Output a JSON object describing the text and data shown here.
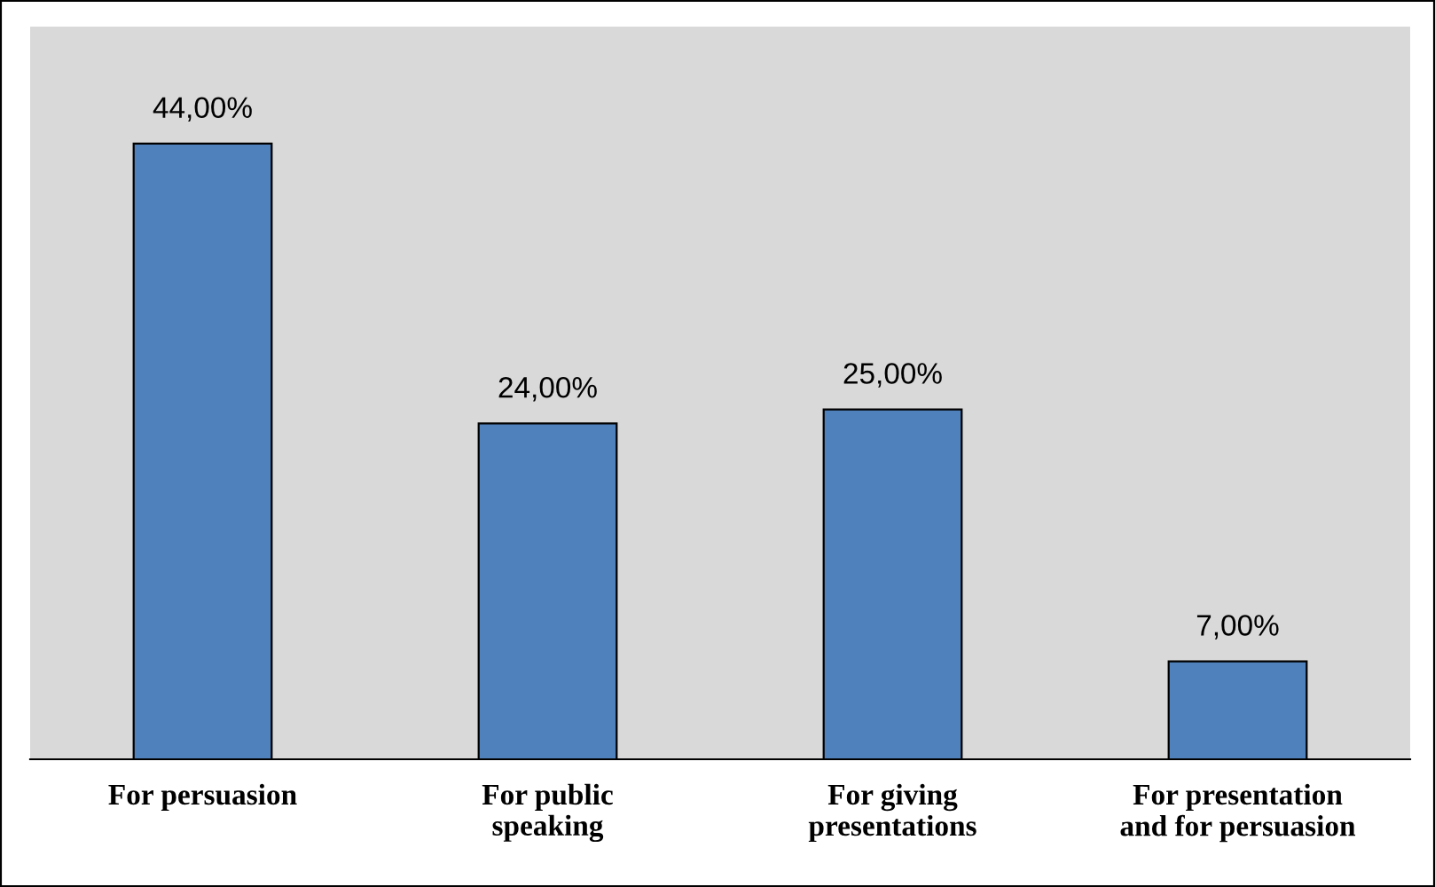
{
  "chart_data": {
    "type": "bar",
    "categories": [
      "For persuasion",
      "For public\nspeaking",
      "For giving\npresentations",
      "For presentation\nand for persuasion"
    ],
    "values": [
      44,
      24,
      25,
      7
    ],
    "value_labels": [
      "44,00%",
      "24,00%",
      "25,00%",
      "7,00%"
    ],
    "color": "#4f81bd",
    "grid": false,
    "legend": false
  }
}
